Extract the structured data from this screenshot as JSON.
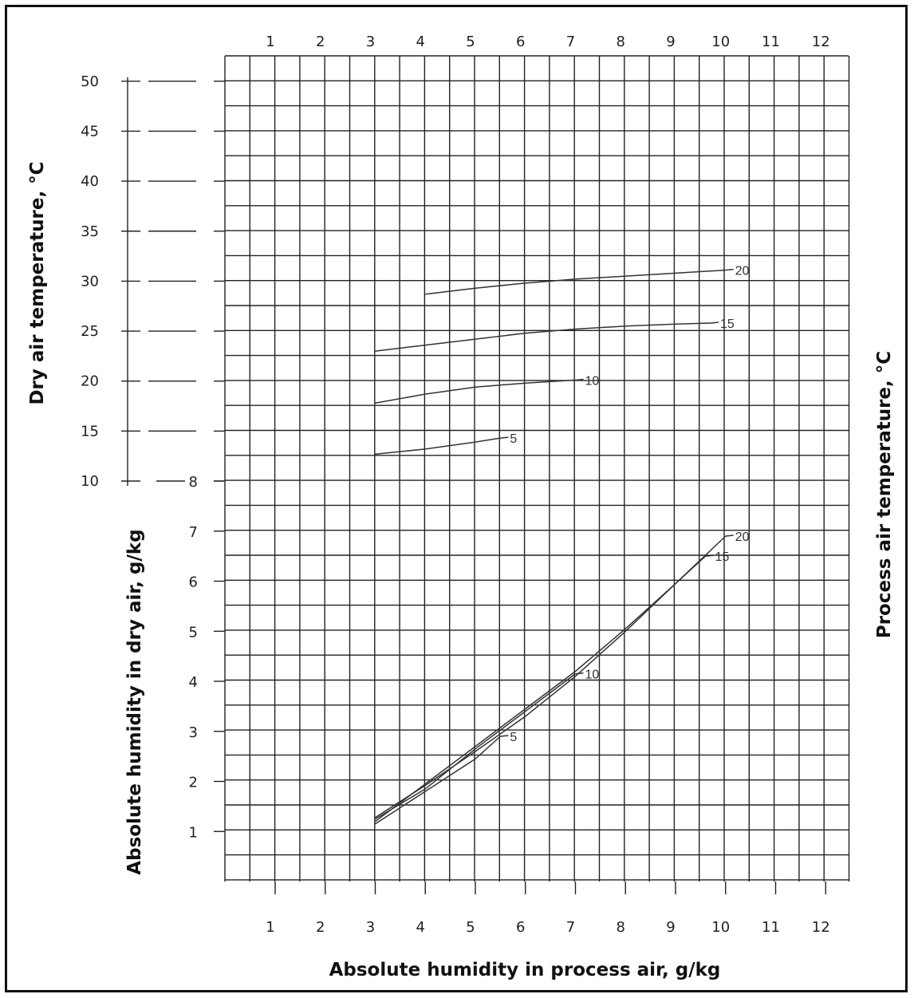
{
  "chart_data": {
    "type": "line",
    "title": "",
    "x_axis": {
      "label": "Absolute humidity in process air, g/kg",
      "ticks": [
        1,
        2,
        3,
        4,
        5,
        6,
        7,
        8,
        9,
        10,
        11,
        12
      ],
      "range": [
        0.5,
        12.5
      ]
    },
    "y_axis_temperature": {
      "label": "Dry air temperature, °C",
      "ticks": [
        10,
        15,
        20,
        25,
        30,
        35,
        40,
        45,
        50
      ],
      "range": [
        10,
        50
      ]
    },
    "y_axis_humidity": {
      "label": "Absolute humidity in dry air, g/kg",
      "ticks": [
        1,
        2,
        3,
        4,
        5,
        6,
        7,
        8
      ],
      "range": [
        0,
        8
      ]
    },
    "right_axis_label": "Process air temperature, °C",
    "grid": true,
    "temperature_series": [
      {
        "name": "20",
        "points": [
          [
            4,
            28.7
          ],
          [
            5,
            29.3
          ],
          [
            6,
            29.8
          ],
          [
            7,
            30.2
          ],
          [
            8,
            30.5
          ],
          [
            9,
            30.8
          ],
          [
            10,
            31.1
          ]
        ]
      },
      {
        "name": "15",
        "points": [
          [
            3,
            23.0
          ],
          [
            4,
            23.6
          ],
          [
            5,
            24.2
          ],
          [
            6,
            24.8
          ],
          [
            7,
            25.2
          ],
          [
            8,
            25.5
          ],
          [
            9,
            25.7
          ],
          [
            9.7,
            25.8
          ]
        ]
      },
      {
        "name": "10",
        "points": [
          [
            3,
            17.8
          ],
          [
            4,
            18.7
          ],
          [
            5,
            19.4
          ],
          [
            6,
            19.8
          ],
          [
            7,
            20.1
          ]
        ]
      },
      {
        "name": "5",
        "points": [
          [
            3,
            12.7
          ],
          [
            4,
            13.2
          ],
          [
            5,
            13.9
          ],
          [
            5.5,
            14.3
          ]
        ]
      }
    ],
    "humidity_series": [
      {
        "name": "20",
        "points": [
          [
            3,
            1.28
          ],
          [
            4,
            1.92
          ],
          [
            5,
            2.6
          ],
          [
            6,
            3.3
          ],
          [
            7,
            4.1
          ],
          [
            8,
            5.0
          ],
          [
            9,
            5.95
          ],
          [
            10,
            6.9
          ]
        ]
      },
      {
        "name": "15",
        "points": [
          [
            3,
            1.2
          ],
          [
            4,
            1.95
          ],
          [
            5,
            2.7
          ],
          [
            6,
            3.45
          ],
          [
            7,
            4.2
          ],
          [
            8,
            5.05
          ],
          [
            9,
            5.95
          ],
          [
            9.6,
            6.5
          ]
        ]
      },
      {
        "name": "10",
        "points": [
          [
            3,
            1.25
          ],
          [
            4,
            1.85
          ],
          [
            5,
            2.65
          ],
          [
            6,
            3.4
          ],
          [
            7,
            4.15
          ]
        ]
      },
      {
        "name": "5",
        "points": [
          [
            3,
            1.15
          ],
          [
            4,
            1.8
          ],
          [
            5,
            2.45
          ],
          [
            5.5,
            2.9
          ]
        ]
      }
    ]
  }
}
